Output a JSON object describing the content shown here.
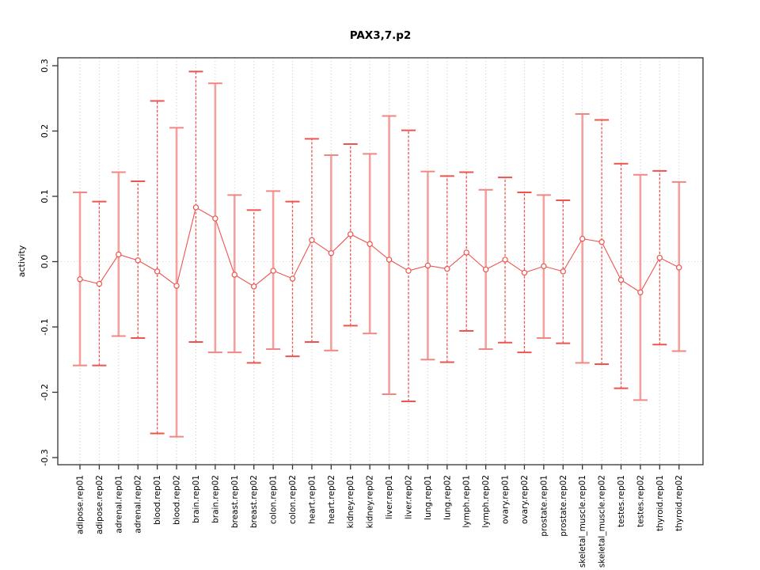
{
  "title": "PAX3,7.p2",
  "chart_data": {
    "type": "scatter",
    "title": "PAX3,7.p2",
    "xlabel": "",
    "ylabel": "activity",
    "ylim": [
      -0.3,
      0.3
    ],
    "yticks": [
      0.3,
      0.2,
      0.1,
      0.0,
      -0.1,
      -0.2,
      -0.3
    ],
    "ytick_labels": [
      "0.3",
      "0.2",
      "0.1",
      "0.0",
      "-0.1",
      "-0.2",
      "-0.3"
    ],
    "grid": "vertical-dotted-per-category",
    "zero_line_dotted": true,
    "legend": "none",
    "categories": [
      "adipose.rep01",
      "adipose.rep02",
      "adrenal.rep01",
      "adrenal.rep02",
      "blood.rep01",
      "blood.rep02",
      "brain.rep01",
      "brain.rep02",
      "breast.rep01",
      "breast.rep02",
      "colon.rep01",
      "colon.rep02",
      "heart.rep01",
      "heart.rep02",
      "kidney.rep01",
      "kidney.rep02",
      "liver.rep01",
      "liver.rep02",
      "lung.rep01",
      "lung.rep02",
      "lymph.rep01",
      "lymph.rep02",
      "ovary.rep01",
      "ovary.rep02",
      "prostate.rep01",
      "prostate.rep02",
      "skeletal_muscle.rep01",
      "skeletal_muscle.rep02",
      "testes.rep01",
      "testes.rep02",
      "thyroid.rep01",
      "thyroid.rep02"
    ],
    "series": [
      {
        "name": "activity",
        "values": [
          -0.027,
          -0.034,
          0.011,
          0.002,
          -0.015,
          -0.037,
          0.083,
          0.066,
          -0.02,
          -0.038,
          -0.014,
          -0.026,
          0.033,
          0.013,
          0.042,
          0.027,
          0.003,
          -0.014,
          -0.006,
          -0.011,
          0.014,
          -0.012,
          0.003,
          -0.017,
          -0.007,
          -0.015,
          0.035,
          0.03,
          -0.028,
          -0.047,
          0.006,
          -0.009
        ],
        "ci_high": [
          0.106,
          0.092,
          0.137,
          0.123,
          0.246,
          0.205,
          0.291,
          0.273,
          0.102,
          0.079,
          0.108,
          0.092,
          0.188,
          0.163,
          0.18,
          0.165,
          0.223,
          0.201,
          0.138,
          0.131,
          0.137,
          0.11,
          0.129,
          0.106,
          0.102,
          0.094,
          0.226,
          0.217,
          0.15,
          0.133,
          0.139,
          0.122
        ],
        "ci_low": [
          -0.159,
          -0.159,
          -0.114,
          -0.117,
          -0.263,
          -0.268,
          -0.123,
          -0.139,
          -0.139,
          -0.155,
          -0.134,
          -0.145,
          -0.123,
          -0.136,
          -0.098,
          -0.11,
          -0.203,
          -0.214,
          -0.15,
          -0.154,
          -0.106,
          -0.134,
          -0.124,
          -0.139,
          -0.117,
          -0.125,
          -0.155,
          -0.157,
          -0.194,
          -0.212,
          -0.127,
          -0.137
        ],
        "bar_styles": [
          "solid",
          "dashed",
          "solid",
          "dashed",
          "dashed",
          "solid",
          "dashed",
          "solid",
          "solid",
          "dashed",
          "solid",
          "dashed",
          "dashed",
          "solid",
          "dashed",
          "solid",
          "solid",
          "dashed",
          "solid",
          "dashed",
          "dashed",
          "solid",
          "dashed",
          "dashed",
          "solid",
          "dashed",
          "solid",
          "dashed",
          "dashed",
          "solid",
          "dashed",
          "solid"
        ]
      }
    ],
    "colors": {
      "point_stroke": "#ee544f",
      "point_fill": "#ffffff",
      "series_line": "#ee544f",
      "bar_solid": "#f5a09d",
      "bar_dashed": "#ee544f",
      "cap_solid": "#f08784",
      "cap_dashed": "#ee544f",
      "gridline": "#c9c9c9",
      "zero_line": "#d4d4d4",
      "box": "#333333",
      "text": "#000000"
    }
  }
}
